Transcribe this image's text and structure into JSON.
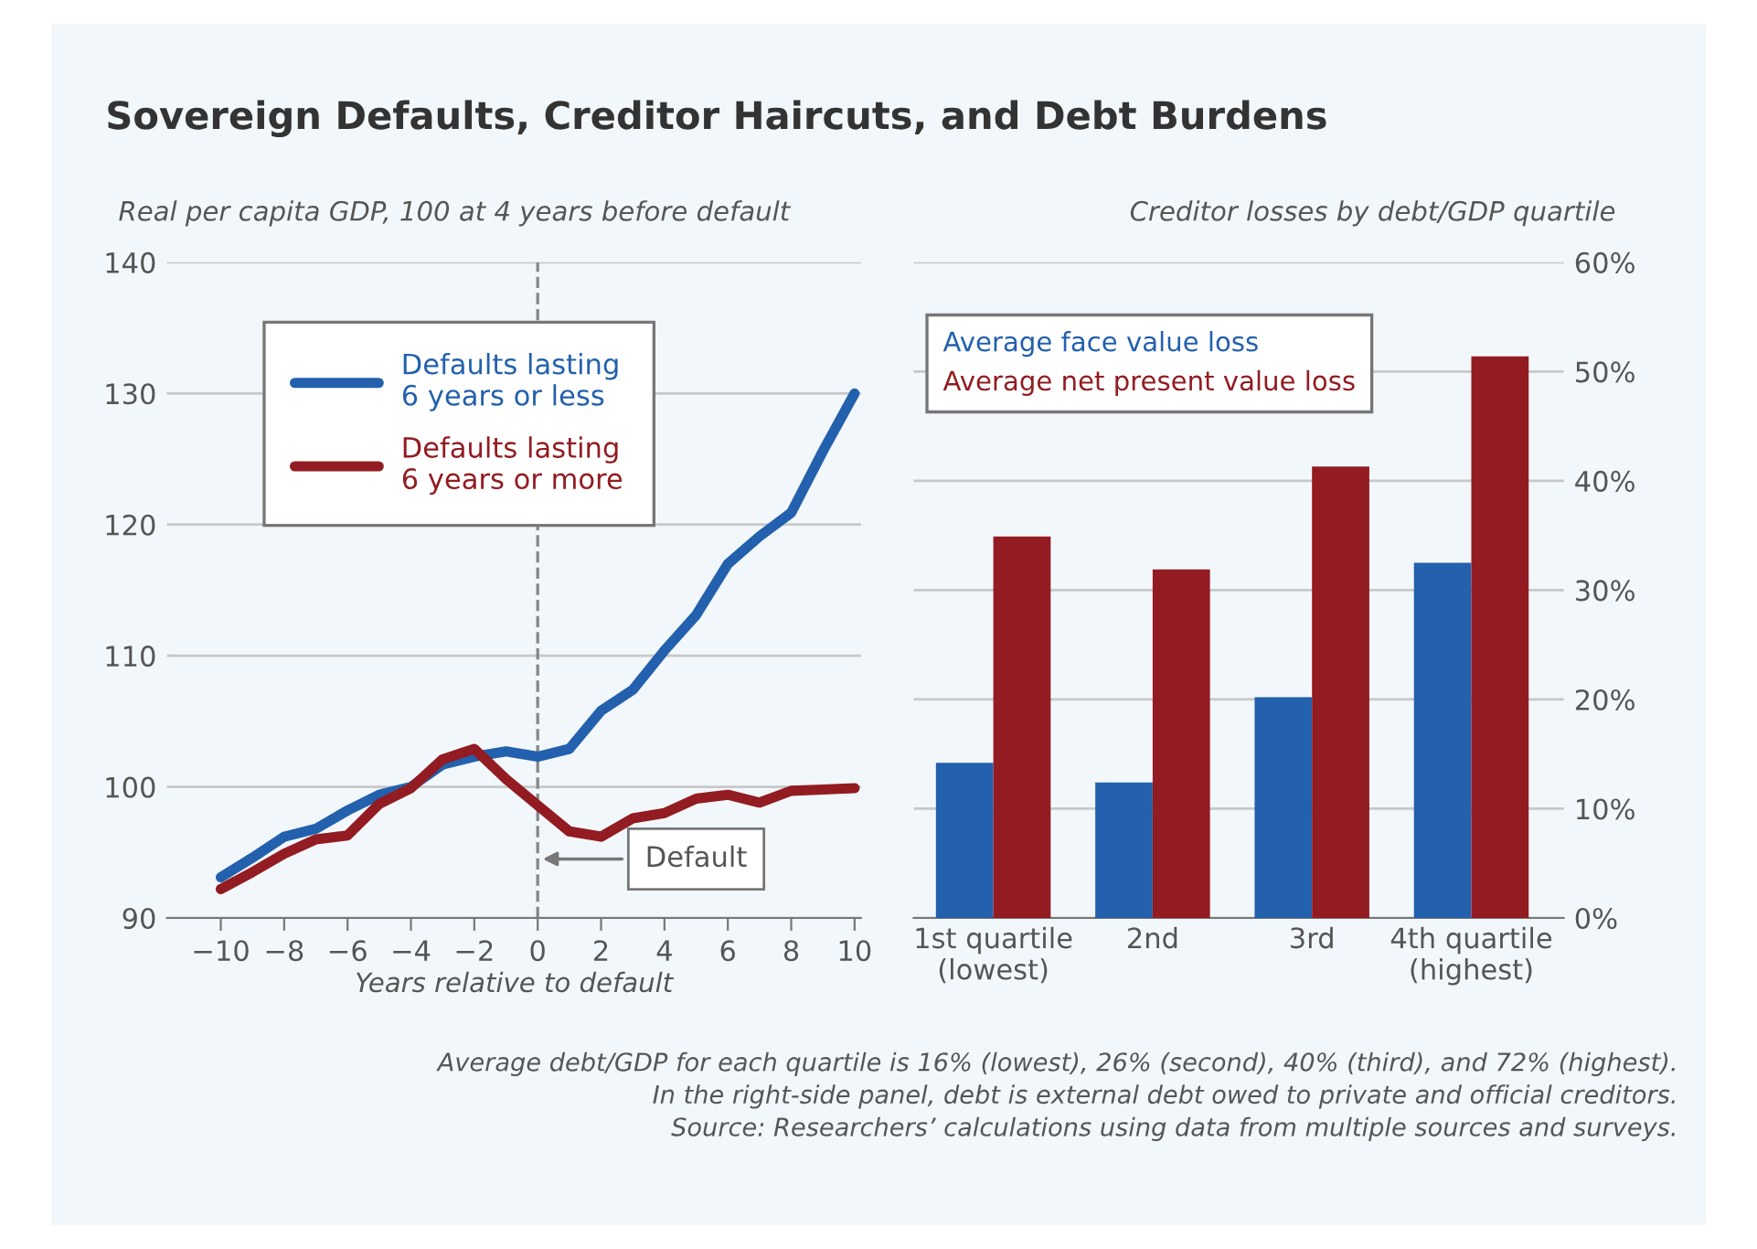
{
  "chart_data": [
    {
      "type": "line",
      "title": "Sovereign Defaults, Creditor Haircuts, and Debt Burdens",
      "ylabel": "Real per capita GDP, 100 at 4 years before default",
      "xlabel": "Years relative to default",
      "x": [
        -10,
        -9,
        -8,
        -7,
        -6,
        -5,
        -4,
        -3,
        -2,
        -1,
        0,
        1,
        2,
        3,
        4,
        5,
        6,
        7,
        8,
        9,
        10
      ],
      "series": [
        {
          "name": "Defaults lasting\n6 years or less",
          "color": "#2360ad",
          "values": [
            93.1,
            94.6,
            96.2,
            96.8,
            98.2,
            99.4,
            100.0,
            101.7,
            102.3,
            102.7,
            102.3,
            102.9,
            105.8,
            107.4,
            110.4,
            113.1,
            117.0,
            119.1,
            120.9,
            125.6,
            130.0
          ]
        },
        {
          "name": "Defaults lasting\n6 years or more",
          "color": "#921c21",
          "values": [
            92.2,
            93.5,
            94.9,
            96.0,
            96.3,
            98.7,
            99.9,
            102.1,
            102.9,
            100.6,
            98.6,
            96.6,
            96.2,
            97.6,
            98.0,
            99.1,
            99.4,
            98.8,
            99.7,
            99.8,
            99.9
          ]
        }
      ],
      "xlim": [
        -11.7,
        10.2
      ],
      "ylim": [
        90,
        140
      ],
      "xticks": [
        {
          "value": -10,
          "label": "−10"
        },
        {
          "value": -8,
          "label": "−8"
        },
        {
          "value": -6,
          "label": "−6"
        },
        {
          "value": -4,
          "label": "−4"
        },
        {
          "value": -2,
          "label": "−2"
        },
        0,
        2,
        4,
        6,
        8,
        10
      ],
      "yticks": [
        90,
        100,
        110,
        120,
        130,
        140
      ],
      "grid": "y",
      "legend": "top left",
      "line_style": "solid",
      "marker": "none",
      "ref_lines": [
        {
          "axis": "x",
          "value": 0,
          "label": null,
          "color": "#888888",
          "line_style": "dashed"
        }
      ],
      "annotations": [
        {
          "text": "Default",
          "x": 0,
          "y": 94.5
        }
      ]
    },
    {
      "type": "bar",
      "ylabel": "Creditor losses by debt/GDP quartile",
      "categories": [
        "1st quartile\n(lowest)",
        "2nd",
        "3rd",
        "4th quartile\n(highest)"
      ],
      "series": [
        {
          "name": "Average face value loss",
          "color": "#2360ad",
          "values": [
            14.2,
            12.4,
            20.2,
            32.5
          ]
        },
        {
          "name": "Average net present value loss",
          "color": "#921c21",
          "values": [
            34.9,
            31.9,
            41.3,
            51.4
          ]
        }
      ],
      "ylim": [
        0,
        60
      ],
      "yticks": [
        {
          "value": 0,
          "label": "0%"
        },
        {
          "value": 10,
          "label": "10%"
        },
        {
          "value": 20,
          "label": "20%"
        },
        {
          "value": 30,
          "label": "30%"
        },
        {
          "value": 40,
          "label": "40%"
        },
        {
          "value": 50,
          "label": "50%"
        },
        {
          "value": 60,
          "label": "60%"
        }
      ],
      "grid": "y",
      "legend": "top left",
      "annotations": [
        "Average debt/GDP for each quartile is 16% (lowest), 26% (second), 40% (third), and 72% (highest).",
        "In the right-side panel, debt is external debt owed to private and official creditors.",
        "Source: Researchers’ calculations using data from multiple sources and surveys."
      ]
    }
  ]
}
